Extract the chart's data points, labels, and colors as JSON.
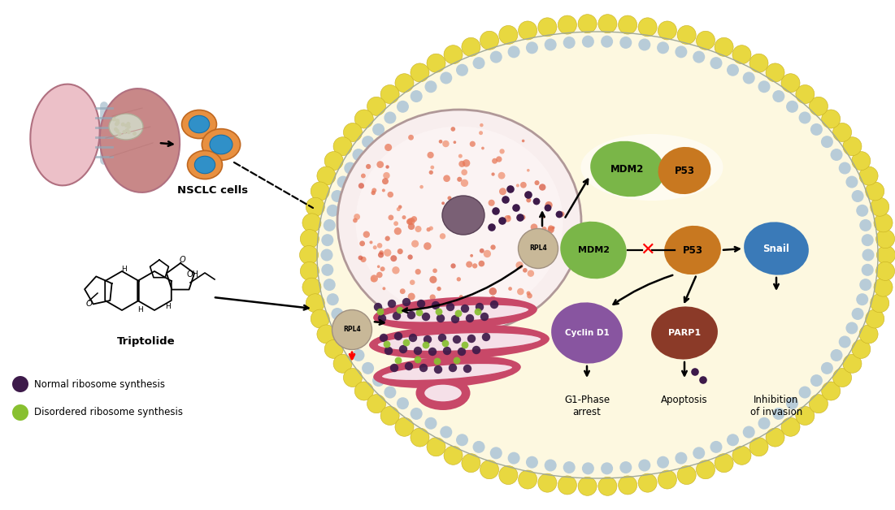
{
  "bg_color": "#ffffff",
  "cell_fill": "#fdf8e0",
  "cell_membrane_yellow": "#e8d840",
  "cell_membrane_gray": "#b8ccd8",
  "nucleus_fill": "#f8eeee",
  "nucleus_border": "#c8a8a8",
  "nucleus_dots": "#e89090",
  "nucleolus_color": "#7a6070",
  "mdm2_color": "#7ab648",
  "p53_color": "#c87820",
  "rpl4_color": "#c8b898",
  "cyclin_d1_color": "#8855a0",
  "parp1_color": "#8b3a28",
  "snail_color": "#3a7ab8",
  "ribosome_dark": "#3d1a4a",
  "ribosome_light": "#88c030",
  "er_outer": "#c04868",
  "er_inner": "#e8a0b8",
  "er_white": "#f8e8f0",
  "lung_left_color": "#ecc0c8",
  "lung_right_color": "#c88888",
  "lung_border": "#b07080",
  "trachea_color": "#d8e8f0",
  "tumor_color": "#d0cfc0",
  "cell_orange": "#e89040",
  "cell_blue": "#3090c8",
  "labels": {
    "nsclc": "NSCLC cells",
    "triptolide": "Triptolide",
    "mdm2": "MDM2",
    "p53": "P53",
    "rpl4": "RPL4",
    "cyclin_d1": "Cyclin D1",
    "parp1": "PARP1",
    "snail": "Snail",
    "g1_phase": "G1-Phase\narrest",
    "apoptosis": "Apoptosis",
    "inhibition": "Inhibition\nof invasion",
    "normal_ribo": "Normal ribosome synthesis",
    "disorder_ribo": "Disordered ribosome synthesis"
  }
}
